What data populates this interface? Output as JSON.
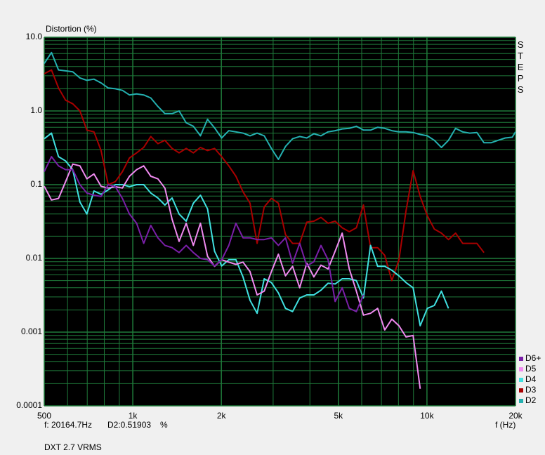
{
  "chart_data": {
    "type": "line",
    "title": "Distortion (%)",
    "side_label": "STEPS",
    "x_label": "f (Hz)",
    "status": {
      "cursor": "f: 20164.7Hz",
      "readout": "D2:0.51903",
      "unit": "%",
      "footer": "DXT 2.7 VRMS"
    },
    "xlog": true,
    "ylog": true,
    "grid": true,
    "grid_color": "#1f7a3a",
    "background": "#000000",
    "legend": "lower right",
    "xlim": [
      500,
      20000
    ],
    "ylim": [
      0.0001,
      10
    ],
    "xticks": [
      500,
      {
        "value": 1000,
        "label": "1k"
      },
      {
        "value": 2000,
        "label": "2k"
      },
      {
        "value": 5000,
        "label": "5k"
      },
      {
        "value": 10000,
        "label": "10k"
      },
      {
        "value": 20000,
        "label": "20k"
      }
    ],
    "yticks": [
      {
        "value": 10,
        "label": "10.0"
      },
      {
        "value": 1,
        "label": "1.0"
      },
      0.1,
      0.01,
      0.001,
      0.0001
    ],
    "xgrid_minor": [
      600,
      700,
      800,
      900,
      3000,
      4000,
      6000,
      7000,
      8000,
      9000
    ],
    "ygrid_minor": [
      0.0002,
      0.0003,
      0.0004,
      0.0005,
      0.0006,
      0.0007,
      0.0008,
      0.0009,
      0.002,
      0.003,
      0.004,
      0.005,
      0.006,
      0.007,
      0.008,
      0.009,
      0.02,
      0.03,
      0.04,
      0.05,
      0.06,
      0.07,
      0.08,
      0.09,
      0.2,
      0.3,
      0.4,
      0.5,
      0.6,
      0.7,
      0.8,
      0.9,
      2,
      3,
      4,
      5,
      6,
      7,
      8,
      9
    ],
    "x": [
      500,
      529,
      559,
      591,
      625,
      661,
      698,
      738,
      780,
      825,
      872,
      922,
      974,
      1030,
      1089,
      1151,
      1217,
      1286,
      1360,
      1437,
      1519,
      1606,
      1698,
      1795,
      1897,
      2005,
      2120,
      2241,
      2369,
      2504,
      2647,
      2798,
      2958,
      3126,
      3305,
      3493,
      3693,
      3903,
      4126,
      4361,
      4610,
      4873,
      5151,
      5445,
      5756,
      6084,
      6431,
      6798,
      7186,
      7596,
      8029,
      8487,
      8972,
      9483,
      10025,
      10596,
      11201,
      11840,
      12516,
      13230,
      13985,
      14783,
      15626,
      16518,
      17460,
      18457,
      19510,
      20000
    ],
    "series": [
      {
        "name": "D6+",
        "color": "#7a1fa8",
        "values": [
          0.15,
          0.24,
          0.18,
          0.16,
          0.16,
          0.1,
          0.077,
          0.072,
          0.069,
          0.1,
          0.094,
          0.065,
          0.04,
          0.03,
          0.016,
          0.028,
          0.019,
          0.015,
          0.014,
          0.012,
          0.015,
          0.012,
          0.01,
          0.0096,
          0.0079,
          0.0096,
          0.015,
          0.03,
          0.019,
          0.019,
          0.018,
          0.018,
          0.019,
          0.015,
          0.019,
          0.0086,
          0.016,
          0.0079,
          0.009,
          0.015,
          0.0096,
          0.0026,
          0.004,
          0.0021,
          0.0019,
          0.0032,
          null,
          null,
          null,
          null,
          null,
          null,
          null,
          null,
          null,
          null,
          null,
          null,
          null,
          null,
          null,
          null,
          null,
          null,
          null,
          null,
          null,
          null
        ]
      },
      {
        "name": "D5",
        "color": "#f08af0",
        "values": [
          0.095,
          0.062,
          0.065,
          0.11,
          0.19,
          0.18,
          0.12,
          0.14,
          0.095,
          0.09,
          0.094,
          0.09,
          0.13,
          0.16,
          0.18,
          0.13,
          0.12,
          0.09,
          0.034,
          0.017,
          0.03,
          0.015,
          0.03,
          0.0107,
          0.0078,
          0.0096,
          0.0089,
          0.0083,
          0.0089,
          0.0066,
          0.0032,
          0.0036,
          0.0066,
          0.0114,
          0.0058,
          0.0078,
          0.004,
          0.0086,
          0.0056,
          0.0081,
          0.0072,
          0.0125,
          0.022,
          0.0072,
          0.0036,
          0.0017,
          0.0018,
          0.0021,
          0.00107,
          0.0015,
          0.00122,
          0.00086,
          0.0009,
          0.00017,
          null,
          null,
          null,
          null,
          null,
          null,
          null,
          null,
          null,
          null,
          null,
          null,
          null,
          null
        ]
      },
      {
        "name": "D4",
        "color": "#40e0e0",
        "values": [
          0.42,
          0.5,
          0.24,
          0.21,
          0.16,
          0.058,
          0.04,
          0.082,
          0.074,
          0.085,
          0.1,
          0.1,
          0.094,
          0.1,
          0.1,
          0.077,
          0.066,
          0.053,
          0.066,
          0.04,
          0.032,
          0.056,
          0.072,
          0.047,
          0.0125,
          0.0079,
          0.0096,
          0.0096,
          0.0056,
          0.0027,
          0.0018,
          0.0053,
          0.0047,
          0.0034,
          0.0021,
          0.0019,
          0.0029,
          0.0032,
          0.0032,
          0.0037,
          0.0046,
          0.0045,
          0.0053,
          0.0053,
          0.005,
          0.0029,
          0.015,
          0.0078,
          0.0078,
          0.0069,
          0.0058,
          0.0047,
          0.004,
          0.00122,
          0.0021,
          0.0023,
          0.0036,
          0.0021,
          null,
          null,
          null,
          null,
          null,
          null,
          null,
          null,
          null,
          null
        ]
      },
      {
        "name": "D3",
        "color": "#a80000",
        "values": [
          3.2,
          3.6,
          2.05,
          1.4,
          1.25,
          1.0,
          0.55,
          0.52,
          0.29,
          0.1,
          0.11,
          0.15,
          0.23,
          0.27,
          0.32,
          0.45,
          0.36,
          0.4,
          0.31,
          0.27,
          0.31,
          0.27,
          0.32,
          0.29,
          0.31,
          0.24,
          0.18,
          0.13,
          0.08,
          0.056,
          0.016,
          0.05,
          0.065,
          0.056,
          0.021,
          0.016,
          0.016,
          0.031,
          0.032,
          0.036,
          0.03,
          0.032,
          0.026,
          0.023,
          0.026,
          0.053,
          0.014,
          0.014,
          0.011,
          0.005,
          0.0095,
          0.044,
          0.155,
          0.069,
          0.038,
          0.025,
          0.022,
          0.018,
          0.022,
          0.016,
          0.016,
          0.016,
          0.012,
          null,
          null,
          null,
          null,
          null
        ]
      },
      {
        "name": "D2",
        "color": "#24b0b0",
        "values": [
          4.4,
          6.2,
          3.6,
          3.5,
          3.4,
          2.8,
          2.6,
          2.7,
          2.4,
          2.05,
          2.0,
          1.9,
          1.65,
          1.7,
          1.65,
          1.5,
          1.15,
          0.92,
          0.92,
          1.0,
          0.69,
          0.62,
          0.46,
          0.77,
          0.59,
          0.43,
          0.54,
          0.52,
          0.5,
          0.46,
          0.5,
          0.46,
          0.31,
          0.22,
          0.33,
          0.42,
          0.45,
          0.43,
          0.49,
          0.46,
          0.52,
          0.54,
          0.57,
          0.58,
          0.62,
          0.55,
          0.55,
          0.6,
          0.58,
          0.54,
          0.52,
          0.52,
          0.51,
          0.48,
          0.46,
          0.4,
          0.32,
          0.4,
          0.58,
          0.52,
          0.5,
          0.51,
          0.37,
          0.37,
          0.4,
          0.43,
          0.44,
          0.52
        ]
      }
    ]
  }
}
